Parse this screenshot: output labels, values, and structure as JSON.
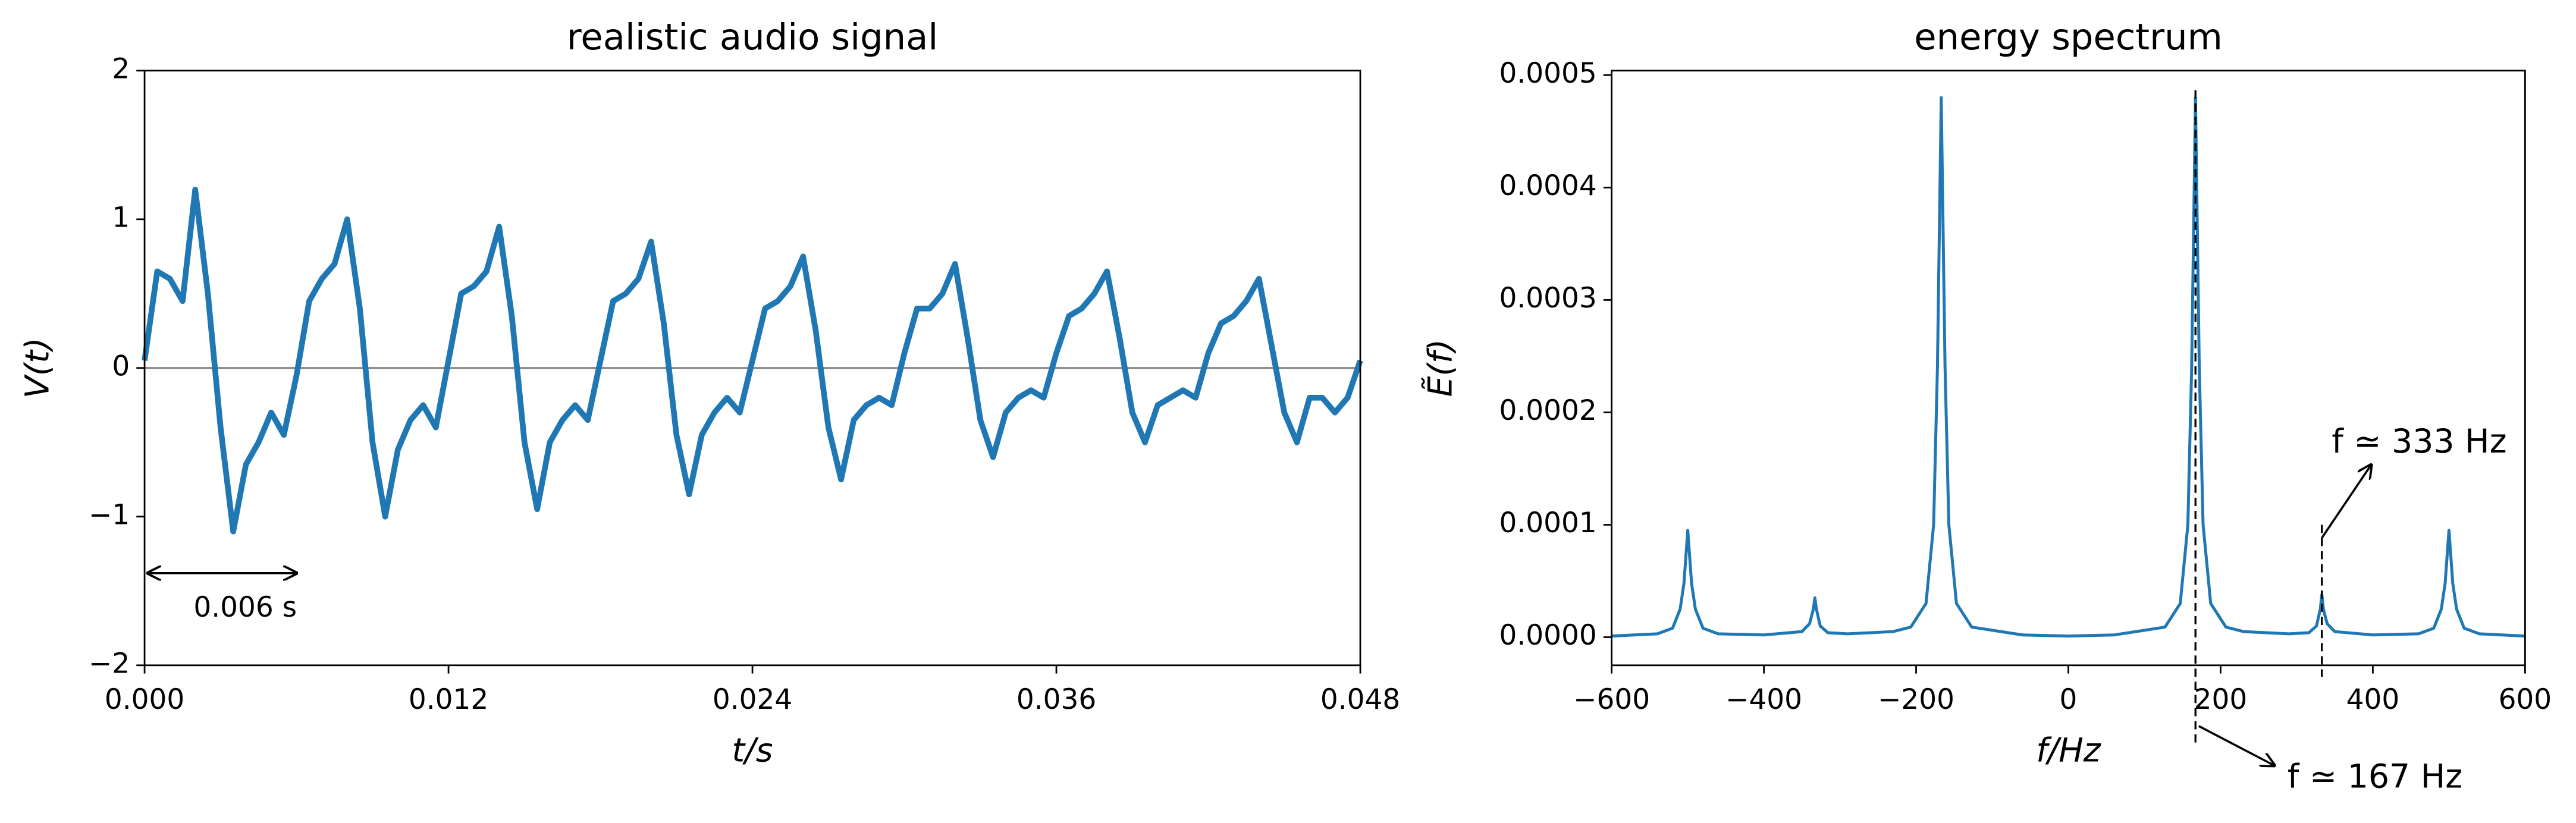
{
  "chart_data": [
    {
      "type": "line",
      "title": "realistic audio signal",
      "xlabel": "t/s",
      "ylabel": "V(t)",
      "color": "#1f77b4",
      "x": [
        0,
        0.0005,
        0.001,
        0.0015,
        0.002,
        0.0025,
        0.003,
        0.0035,
        0.004,
        0.0045,
        0.005,
        0.0055,
        0.006,
        0.0065,
        0.007,
        0.0075,
        0.008,
        0.0085,
        0.009,
        0.0095,
        0.01,
        0.0105,
        0.011,
        0.0115,
        0.012,
        0.0125,
        0.013,
        0.0135,
        0.014,
        0.0145,
        0.015,
        0.0155,
        0.016,
        0.0165,
        0.017,
        0.0175,
        0.018,
        0.0185,
        0.019,
        0.0195,
        0.02,
        0.0205,
        0.021,
        0.0215,
        0.022,
        0.0225,
        0.023,
        0.0235,
        0.024,
        0.0245,
        0.025,
        0.0255,
        0.026,
        0.0265,
        0.027,
        0.0275,
        0.028,
        0.0285,
        0.029,
        0.0295,
        0.03,
        0.0305,
        0.031,
        0.0315,
        0.032,
        0.0325,
        0.033,
        0.0335,
        0.034,
        0.0345,
        0.035,
        0.0355,
        0.036,
        0.0365,
        0.037,
        0.0375,
        0.038,
        0.0385,
        0.039,
        0.0395,
        0.04,
        0.0405,
        0.041,
        0.0415,
        0.042,
        0.0425,
        0.043,
        0.0435,
        0.044,
        0.0445,
        0.045,
        0.0455,
        0.046,
        0.0465,
        0.047,
        0.0475,
        0.048
      ],
      "values": [
        0.05,
        0.65,
        0.6,
        0.45,
        1.2,
        0.5,
        -0.4,
        -1.1,
        -0.65,
        -0.5,
        -0.3,
        -0.45,
        -0.05,
        0.45,
        0.6,
        0.7,
        1.0,
        0.4,
        -0.5,
        -1.0,
        -0.55,
        -0.35,
        -0.25,
        -0.4,
        0.05,
        0.5,
        0.55,
        0.65,
        0.95,
        0.35,
        -0.5,
        -0.95,
        -0.5,
        -0.35,
        -0.25,
        -0.35,
        0.05,
        0.45,
        0.5,
        0.6,
        0.85,
        0.3,
        -0.45,
        -0.85,
        -0.45,
        -0.3,
        -0.2,
        -0.3,
        0.05,
        0.4,
        0.45,
        0.55,
        0.75,
        0.25,
        -0.4,
        -0.75,
        -0.35,
        -0.25,
        -0.2,
        -0.25,
        0.1,
        0.4,
        0.4,
        0.5,
        0.7,
        0.2,
        -0.35,
        -0.6,
        -0.3,
        -0.2,
        -0.15,
        -0.2,
        0.1,
        0.35,
        0.4,
        0.5,
        0.65,
        0.2,
        -0.3,
        -0.5,
        -0.25,
        -0.2,
        -0.15,
        -0.2,
        0.1,
        0.3,
        0.35,
        0.45,
        0.6,
        0.15,
        -0.3,
        -0.5,
        -0.2,
        -0.2,
        -0.3,
        -0.2,
        0.05
      ],
      "xlim": [
        0,
        0.048
      ],
      "ylim": [
        -2,
        2
      ],
      "xticks": [
        {
          "value": 0,
          "label": "0.000"
        },
        0.012,
        0.024,
        0.036,
        0.048
      ],
      "yticks": [
        {
          "value": -2,
          "label": "−2"
        },
        {
          "value": -1,
          "label": "−1"
        },
        0,
        1,
        2
      ],
      "hline": 0,
      "arrow": {
        "from": 0,
        "to": 0.006,
        "y": -1.38,
        "text": "0.006 s"
      }
    },
    {
      "type": "line",
      "title": "energy spectrum",
      "xlabel": "f/Hz",
      "ylabel": "Ẽ(f)",
      "color": "#1f77b4",
      "x": [
        -600,
        -540,
        -520,
        -510,
        -505,
        -500,
        -495,
        -490,
        -480,
        -460,
        -400,
        -350,
        -340,
        -335,
        -333,
        -331,
        -326,
        -316,
        -290,
        -230,
        -207,
        -187,
        -177,
        -172,
        -167,
        -162,
        -157,
        -147,
        -127,
        -60,
        0,
        60,
        127,
        147,
        157,
        162,
        167,
        172,
        177,
        187,
        207,
        230,
        290,
        316,
        326,
        331,
        333,
        335,
        340,
        350,
        400,
        460,
        480,
        490,
        495,
        500,
        505,
        510,
        520,
        540,
        600
      ],
      "values": [
        1e-06,
        3e-06,
        8e-06,
        2.5e-05,
        4.8e-05,
        9.5e-05,
        4.8e-05,
        2.5e-05,
        8e-06,
        3e-06,
        2e-06,
        5e-06,
        1.2e-05,
        2.5e-05,
        3.5e-05,
        2.5e-05,
        1e-05,
        4e-06,
        3e-06,
        5e-06,
        9e-06,
        3e-05,
        0.0001,
        0.00024,
        0.00048,
        0.00024,
        0.0001,
        3e-05,
        9e-06,
        2e-06,
        1e-06,
        2e-06,
        9e-06,
        3e-05,
        0.0001,
        0.00024,
        0.00048,
        0.00024,
        0.0001,
        3e-05,
        9e-06,
        5e-06,
        3e-06,
        4e-06,
        1e-05,
        2.5e-05,
        3.8e-05,
        2.5e-05,
        1.2e-05,
        5e-06,
        2e-06,
        3e-06,
        8e-06,
        2.5e-05,
        4.8e-05,
        9.5e-05,
        4.8e-05,
        2.5e-05,
        8e-06,
        3e-06,
        1e-06
      ],
      "xlim": [
        -600,
        600
      ],
      "ylim": [
        -2.5e-05,
        0.000504
      ],
      "xticks": [
        {
          "value": -600,
          "label": "−600"
        },
        {
          "value": -400,
          "label": "−400"
        },
        {
          "value": -200,
          "label": "−200"
        },
        0,
        200,
        400,
        600
      ],
      "yticks": [
        {
          "value": 0,
          "label": "0.0000"
        },
        0.0001,
        0.0002,
        0.0003,
        0.0004,
        0.0005
      ],
      "annotations": [
        {
          "x": 167,
          "text": "f ≃ 167 Hz"
        },
        {
          "x": 333,
          "y": 0.0001,
          "text": "f ≃ 333 Hz"
        }
      ]
    }
  ]
}
